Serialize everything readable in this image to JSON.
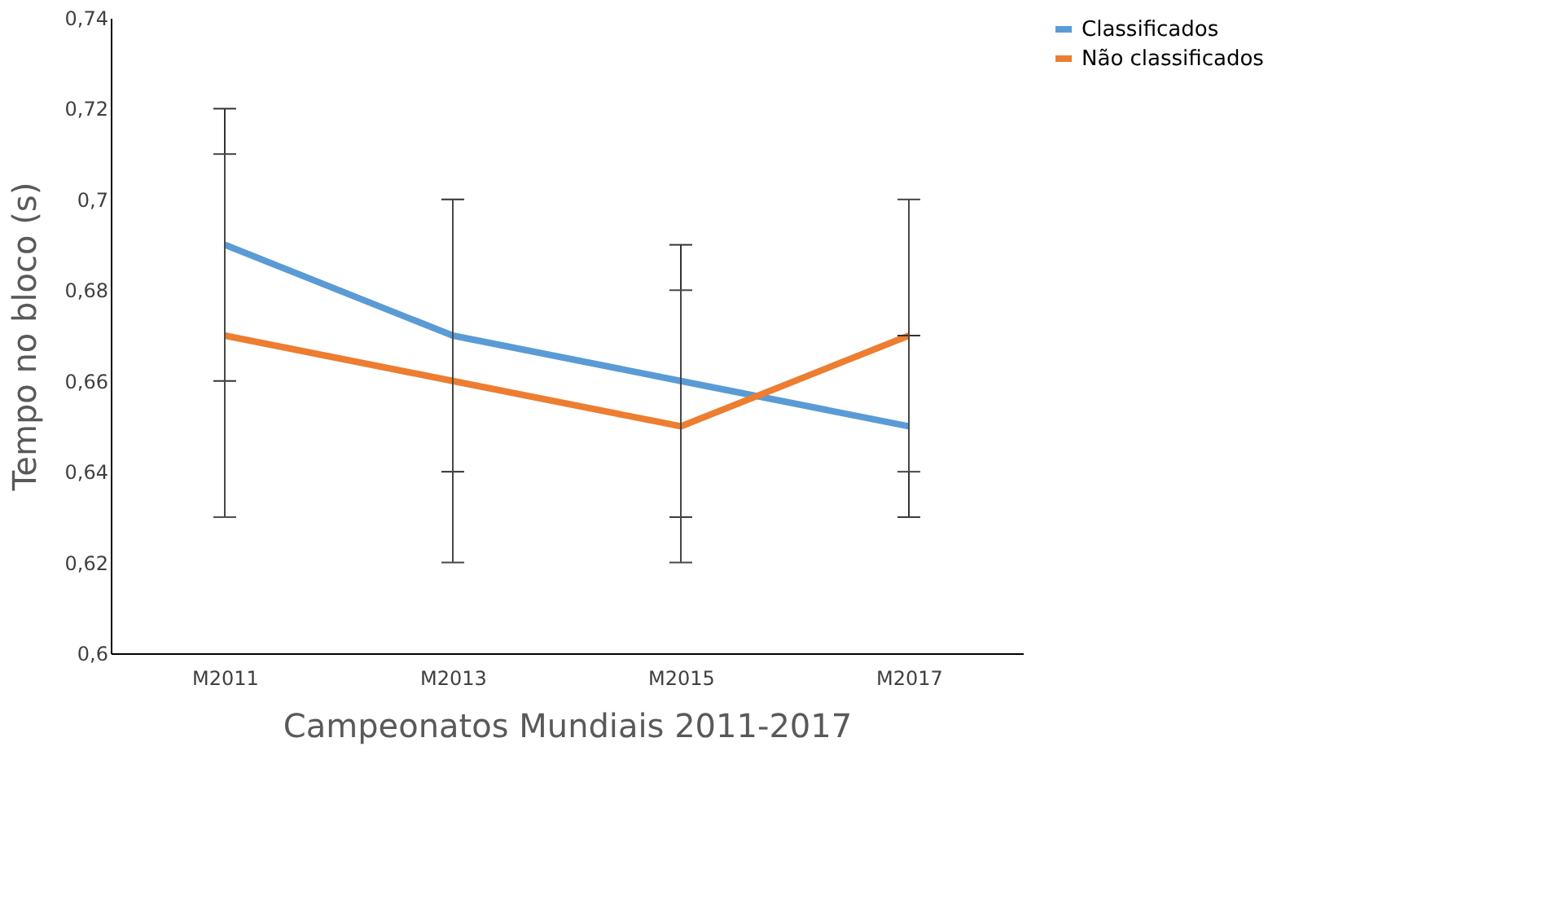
{
  "chart_data": {
    "type": "line",
    "xlabel": "Campeonatos Mundiais 2011-2017",
    "ylabel": "Tempo no bloco (s)",
    "categories": [
      "M2011",
      "M2013",
      "M2015",
      "M2017"
    ],
    "series": [
      {
        "name": "Classificados",
        "color": "#5b9bd5",
        "values": [
          0.69,
          0.67,
          0.66,
          0.65
        ],
        "errors": [
          0.03,
          0.03,
          0.03,
          0.02
        ]
      },
      {
        "name": "Não classificados",
        "color": "#ed7d31",
        "values": [
          0.67,
          0.66,
          0.65,
          0.67
        ],
        "errors": [
          0.04,
          0.04,
          0.03,
          0.03
        ]
      }
    ],
    "ylim": [
      0.6,
      0.74
    ],
    "yticks": [
      {
        "value": 0.6,
        "label": "0,6"
      },
      {
        "value": 0.62,
        "label": "0,62"
      },
      {
        "value": 0.64,
        "label": "0,64"
      },
      {
        "value": 0.66,
        "label": "0,66"
      },
      {
        "value": 0.68,
        "label": "0,68"
      },
      {
        "value": 0.7,
        "label": "0,7"
      },
      {
        "value": 0.72,
        "label": "0,72"
      },
      {
        "value": 0.74,
        "label": "0,74"
      }
    ],
    "grid": false,
    "legend": "right",
    "marker": "none",
    "line_style": "solid"
  }
}
